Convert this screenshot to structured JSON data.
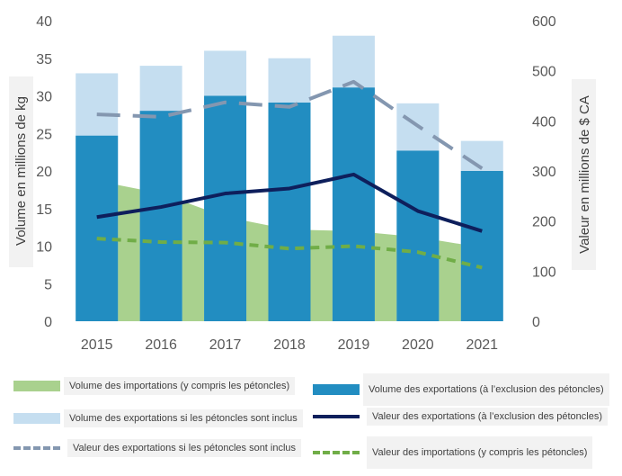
{
  "chart_data": {
    "type": "bar",
    "categories": [
      "2015",
      "2016",
      "2017",
      "2018",
      "2019",
      "2020",
      "2021"
    ],
    "y_left": {
      "label": "Volume en millions de kg",
      "ylim": [
        0,
        40
      ],
      "ticks": [
        "0",
        "5",
        "10",
        "15",
        "20",
        "25",
        "30",
        "35",
        "40"
      ]
    },
    "y_right": {
      "label": "Valeur en millions de $ CA",
      "ylim": [
        0,
        600
      ],
      "ticks": [
        "0",
        "100",
        "200",
        "300",
        "400",
        "500",
        "600"
      ]
    },
    "grid": false,
    "legend_position": "bottom",
    "series": [
      {
        "name": "Volume des importations (y compris les pétoncles)",
        "type": "area",
        "axis": "left",
        "color": "#a9d18e",
        "values": [
          18.7,
          17.0,
          13.9,
          12.2,
          12.0,
          11.2,
          9.8
        ]
      },
      {
        "name": "Volume des exportations si les pétoncles sont inclus",
        "type": "bar",
        "axis": "left",
        "color": "#c5def0",
        "values": [
          33,
          34,
          36,
          35,
          38,
          29,
          24
        ]
      },
      {
        "name": "Volume des exportations (à l’exclusion des pétoncles)",
        "type": "bar",
        "axis": "left",
        "color": "#228dc1",
        "values": [
          24.7,
          28.0,
          30.0,
          29.1,
          31.1,
          22.7,
          20.0
        ]
      },
      {
        "name": "Valeur des exportations si les pétoncles sont inclus",
        "type": "line",
        "axis": "right",
        "color": "#8497b0",
        "dash": "long",
        "values": [
          413,
          408,
          437,
          428,
          478,
          390,
          305
        ]
      },
      {
        "name": "Valeur des exportations (à l’exclusion des pétoncles)",
        "type": "line",
        "axis": "right",
        "color": "#0e1f5c",
        "dash": "solid",
        "values": [
          208,
          228,
          255,
          265,
          293,
          220,
          180
        ]
      },
      {
        "name": "Valeur des importations (y compris les pétoncles)",
        "type": "line",
        "axis": "right",
        "color": "#70ad47",
        "dash": "short",
        "values": [
          165,
          158,
          157,
          145,
          150,
          138,
          107
        ]
      }
    ]
  },
  "legend": {
    "import_volume": "Volume des importations (y compris les pétoncles)",
    "export_volume_excl": "Volume des exportations (à l’exclusion des pétoncles)",
    "export_volume_incl": "Volume des exportations si les pétoncles sont inclus",
    "export_value_excl": "Valeur des exportations (à l’exclusion des pétoncles)",
    "export_value_incl": "Valeur des exportations si les pétoncles sont inclus",
    "import_value": "Valeur des importations (y compris les pétoncles)"
  }
}
